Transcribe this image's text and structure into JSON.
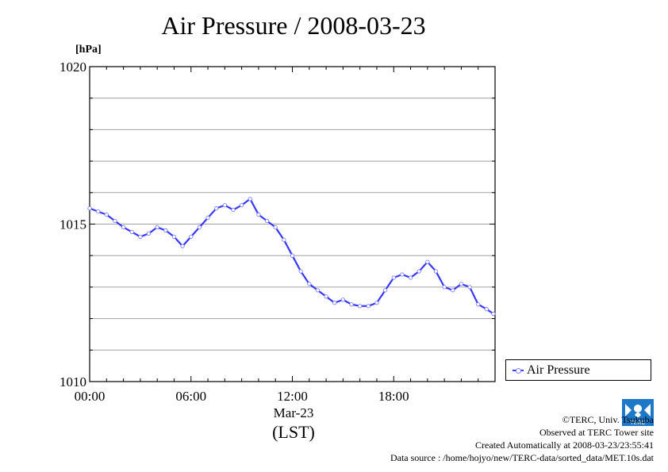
{
  "chart_data": {
    "type": "line",
    "title": "Air Pressure / 2008-03-23",
    "ylabel": "[hPa]",
    "xlabel": "(LST)",
    "x_date_label": "Mar-23",
    "ylim": [
      1010,
      1020
    ],
    "y_ticks": [
      "1010",
      "1015",
      "1020"
    ],
    "x_ticks": [
      "00:00",
      "06:00",
      "12:00",
      "18:00"
    ],
    "x_range_hours": [
      0,
      24
    ],
    "grid": true,
    "legend_position": "bottom-right outside",
    "series": [
      {
        "name": "Air Pressure",
        "color": "#3838ff",
        "x": [
          0,
          0.5,
          1,
          1.5,
          2,
          2.5,
          3,
          3.5,
          4,
          4.5,
          5,
          5.5,
          6,
          6.5,
          7,
          7.5,
          8,
          8.5,
          9,
          9.5,
          10,
          10.5,
          11,
          11.5,
          12,
          12.5,
          13,
          13.5,
          14,
          14.5,
          15,
          15.5,
          16,
          16.5,
          17,
          17.5,
          18,
          18.5,
          19,
          19.5,
          20,
          20.5,
          21,
          21.5,
          22,
          22.5,
          23,
          23.5,
          23.9
        ],
        "y": [
          1015.5,
          1015.4,
          1015.3,
          1015.1,
          1014.9,
          1014.75,
          1014.6,
          1014.7,
          1014.9,
          1014.8,
          1014.6,
          1014.3,
          1014.6,
          1014.9,
          1015.2,
          1015.5,
          1015.6,
          1015.45,
          1015.6,
          1015.8,
          1015.3,
          1015.1,
          1014.9,
          1014.5,
          1014.0,
          1013.5,
          1013.1,
          1012.9,
          1012.7,
          1012.5,
          1012.6,
          1012.45,
          1012.4,
          1012.4,
          1012.5,
          1012.9,
          1013.3,
          1013.4,
          1013.3,
          1013.5,
          1013.8,
          1013.5,
          1013.0,
          1012.9,
          1013.1,
          1013.0,
          1012.45,
          1012.3,
          1012.15
        ]
      }
    ]
  },
  "footer": {
    "copyright": "©TERC, Univ. Tsukuba",
    "observed": "Observed at TERC Tower site",
    "created": "Created Automatically at 2008-03-23/23:55:41",
    "source": "Data source : /home/hojyo/new/TERC-data/sorted_data/MET.10s.dat"
  },
  "logo_text": "TERC"
}
